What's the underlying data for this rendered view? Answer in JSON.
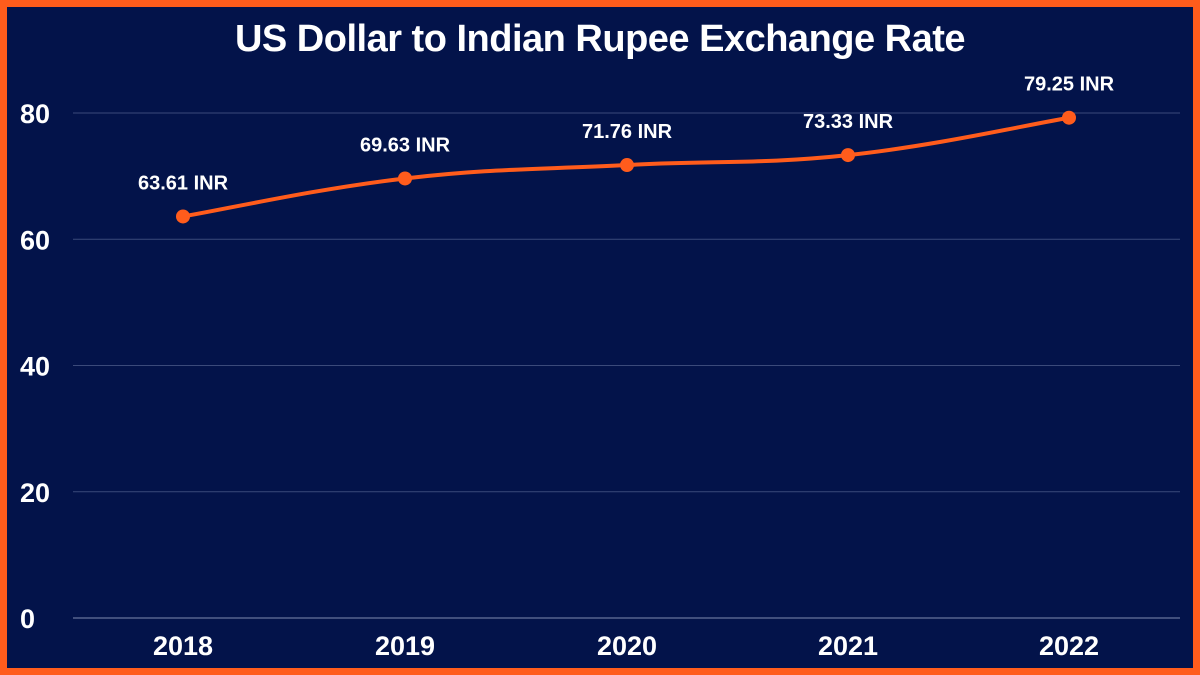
{
  "chart_data": {
    "type": "line",
    "title": "US Dollar to Indian Rupee Exchange Rate",
    "xlabel": "",
    "ylabel": "",
    "categories": [
      "2018",
      "2019",
      "2020",
      "2021",
      "2022"
    ],
    "values": [
      63.61,
      69.63,
      71.76,
      73.33,
      79.25
    ],
    "data_labels": [
      "63.61 INR",
      "69.63 INR",
      "71.76 INR",
      "73.33 INR",
      "79.25 INR"
    ],
    "ylim": [
      0,
      80
    ],
    "yticks": [
      "0",
      "20",
      "40",
      "60",
      "80"
    ],
    "grid": true,
    "legend": "none",
    "colors": {
      "background": "#03134a",
      "line": "#ff5c1c",
      "border": "#ff5c1c",
      "grid": "#3b4a7a",
      "text": "#ffffff"
    }
  }
}
